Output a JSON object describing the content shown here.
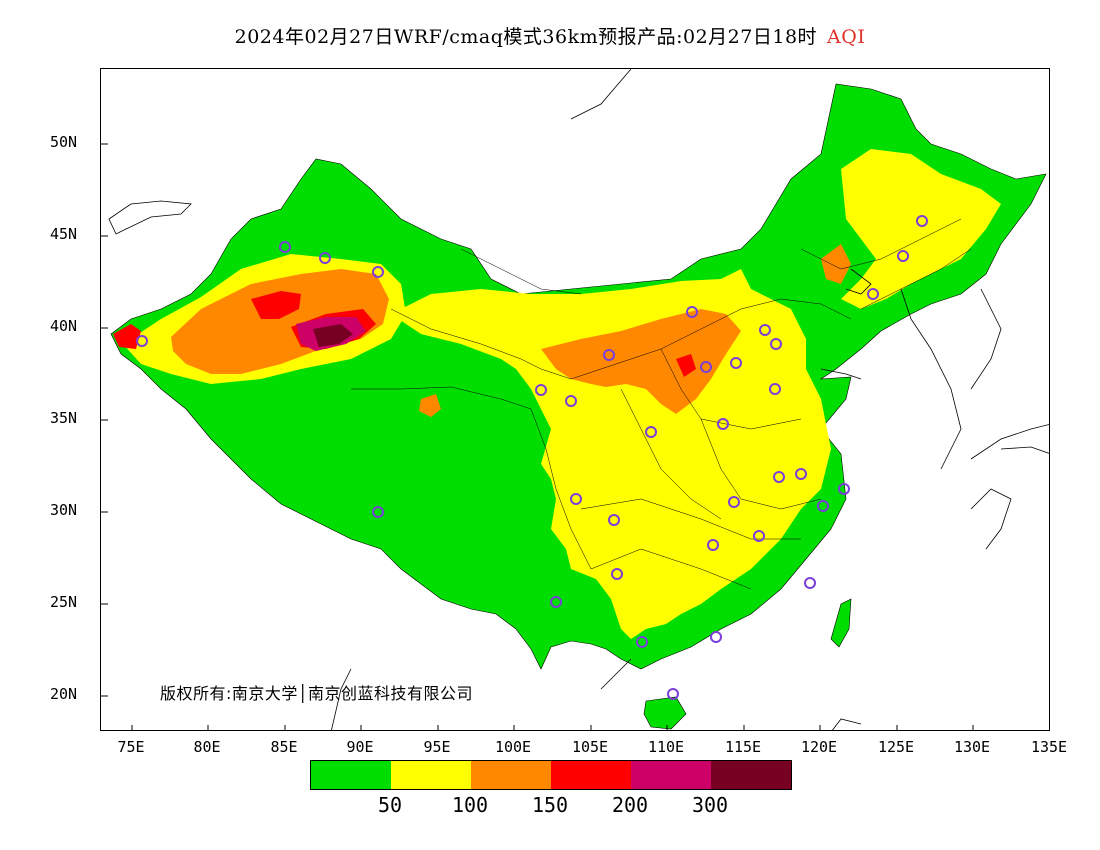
{
  "title": {
    "main": "2024年02月27日WRF/cmaq模式36km预报产品:02月27日18时",
    "aqi": "AQI"
  },
  "axes": {
    "lat_ticks": [
      "50N",
      "45N",
      "40N",
      "35N",
      "30N",
      "25N",
      "20N"
    ],
    "lon_ticks": [
      "75E",
      "80E",
      "85E",
      "90E",
      "95E",
      "100E",
      "105E",
      "110E",
      "115E",
      "120E",
      "125E",
      "130E",
      "135E"
    ]
  },
  "copyright": "版权所有:南京大学│南京创蓝科技有限公司",
  "legend": {
    "colors": [
      "#00dd00",
      "#ffff00",
      "#ff8800",
      "#ff0000",
      "#cc0066",
      "#770022"
    ],
    "thresholds": [
      "50",
      "100",
      "150",
      "200",
      "300"
    ]
  },
  "colors": {
    "good": "#00dd00",
    "moderate": "#ffff00",
    "usg": "#ff8800",
    "unhealthy": "#ff0000",
    "very_unhealthy": "#cc0066",
    "hazardous": "#770022",
    "station_marker": "#7b3fd8",
    "title_accent": "#e0302a"
  }
}
